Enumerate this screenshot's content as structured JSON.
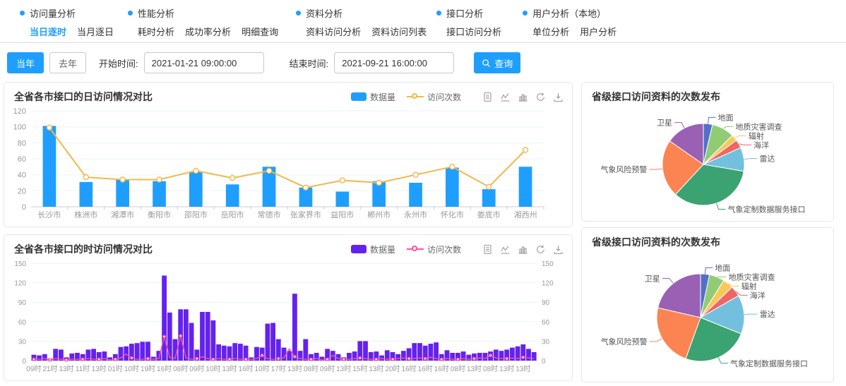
{
  "nav": {
    "groups": [
      {
        "title": "访问量分析",
        "items": [
          {
            "label": "当日逐时",
            "active": true
          },
          {
            "label": "当月逐日",
            "active": false
          }
        ]
      },
      {
        "title": "性能分析",
        "items": [
          {
            "label": "耗时分析",
            "active": false
          },
          {
            "label": "成功率分析",
            "active": false
          },
          {
            "label": "明细查询",
            "active": false
          }
        ]
      },
      {
        "title": "资料分析",
        "items": [
          {
            "label": "资料访问分析",
            "active": false
          },
          {
            "label": "资料访问列表",
            "active": false
          }
        ]
      },
      {
        "title": "接口分析",
        "items": [
          {
            "label": "接口访问分析",
            "active": false
          }
        ]
      },
      {
        "title": "用户分析（本地）",
        "items": [
          {
            "label": "单位分析",
            "active": false
          },
          {
            "label": "用户分析",
            "active": false
          }
        ]
      }
    ]
  },
  "filters": {
    "this_year_label": "当年",
    "last_year_label": "去年",
    "start_label": "开始时间:",
    "start_value": "2021-01-21 09:00:00",
    "end_label": "结束时间:",
    "end_value": "2021-09-21 16:00:00",
    "search_label": "查询"
  },
  "colors": {
    "accent": "#1e9fff"
  },
  "chart_data": [
    {
      "id": "daily",
      "type": "bar",
      "title": "全省各市接口的日访问情况对比",
      "categories": [
        "长沙市",
        "株洲市",
        "湘潭市",
        "衡阳市",
        "邵阳市",
        "岳阳市",
        "常德市",
        "张家界市",
        "益阳市",
        "郴州市",
        "永州市",
        "怀化市",
        "娄底市",
        "湘西州"
      ],
      "series": [
        {
          "name": "数据量",
          "type": "bar",
          "color": "#1e9fff",
          "values": [
            101,
            31,
            34,
            32,
            44,
            28,
            50,
            24,
            19,
            32,
            30,
            49,
            22,
            50
          ]
        },
        {
          "name": "访问次数",
          "type": "line",
          "color": "#f2b84b",
          "values": [
            99,
            37,
            34,
            34,
            45,
            36,
            45,
            24,
            33,
            30,
            40,
            50,
            25,
            71
          ]
        }
      ],
      "ylim": [
        0,
        120
      ],
      "ytick_step": 20,
      "grid": true,
      "legend_position": "top"
    },
    {
      "id": "hourly",
      "type": "bar",
      "title": "全省各市接口的时访问情况对比",
      "x_labels": [
        "09时",
        "21时",
        "13时",
        "11时",
        "13时",
        "01时",
        "10时",
        "19时",
        "16时",
        "08时",
        "09时",
        "10时",
        "13时",
        "16时",
        "10时",
        "17时",
        "13时",
        "08时",
        "09时",
        "13时",
        "15时",
        "13时",
        "20时",
        "16时",
        "16时",
        "16时",
        "08时",
        "13时",
        "08时",
        "13时",
        "13时"
      ],
      "x_label_interval": 3,
      "series": [
        {
          "name": "数据量",
          "type": "bar",
          "color": "#6421f0",
          "values": [
            9,
            8,
            10,
            3,
            18,
            17,
            5,
            11,
            12,
            10,
            17,
            18,
            13,
            14,
            5,
            10,
            21,
            22,
            26,
            27,
            29,
            29,
            6,
            15,
            131,
            74,
            33,
            79,
            79,
            58,
            17,
            75,
            75,
            62,
            25,
            23,
            22,
            27,
            26,
            23,
            5,
            21,
            20,
            57,
            58,
            33,
            20,
            15,
            103,
            15,
            33,
            10,
            12,
            6,
            18,
            15,
            10,
            5,
            12,
            14,
            30,
            30,
            13,
            14,
            8,
            16,
            13,
            10,
            15,
            19,
            27,
            27,
            23,
            26,
            28,
            10,
            16,
            12,
            12,
            14,
            9,
            11,
            12,
            12,
            14,
            17,
            15,
            17,
            20,
            22,
            25,
            18,
            13
          ]
        },
        {
          "name": "访问次数",
          "type": "line",
          "color": "#ff4f9e",
          "values": [
            2,
            2,
            3,
            1,
            3,
            2,
            1,
            2,
            2,
            2,
            3,
            2,
            2,
            3,
            1,
            2,
            4,
            10,
            4,
            2,
            2,
            3,
            2,
            3,
            37,
            5,
            3,
            38,
            4,
            2,
            3,
            6,
            3,
            2,
            3,
            2,
            2,
            3,
            2,
            2,
            2,
            3,
            8,
            3,
            2,
            3,
            4,
            18,
            6,
            3,
            2,
            2,
            3,
            1,
            2,
            8,
            3,
            2,
            2,
            3,
            4,
            3,
            2,
            2,
            3,
            2,
            2,
            3,
            4,
            3,
            3,
            4,
            3,
            5,
            3,
            2,
            3,
            2,
            2,
            3,
            2,
            3,
            4,
            3,
            8,
            4,
            3,
            3,
            4,
            3,
            5,
            4,
            3
          ]
        }
      ],
      "ylim": [
        0,
        150
      ],
      "ytick_step": 30,
      "grid": true,
      "dual_y_axis": true,
      "legend_position": "top"
    },
    {
      "id": "pie-top",
      "type": "pie",
      "title": "省级接口访问资料的次数发布",
      "slices": [
        {
          "label": "地面",
          "value": 3.6,
          "color": "#5470c6"
        },
        {
          "label": "地质灾害调查",
          "value": 8.9,
          "color": "#91cc75"
        },
        {
          "label": "辐射",
          "value": 2.5,
          "color": "#fac858"
        },
        {
          "label": "海洋",
          "value": 3.3,
          "color": "#ee6666"
        },
        {
          "label": "雷达",
          "value": 9.4,
          "color": "#73c0de"
        },
        {
          "label": "气象定制数据服务接口",
          "value": 34.2,
          "color": "#3ba272"
        },
        {
          "label": "气象风险预警",
          "value": 22.8,
          "color": "#fc8452"
        },
        {
          "label": "卫星",
          "value": 15.3,
          "color": "#9a60b4"
        }
      ]
    },
    {
      "id": "pie-bottom",
      "type": "pie",
      "title": "省级接口访问资料的次数发布",
      "slices": [
        {
          "label": "地面",
          "value": 3.3,
          "color": "#5470c6"
        },
        {
          "label": "地质灾害调查",
          "value": 5.6,
          "color": "#91cc75"
        },
        {
          "label": "辐射",
          "value": 3.9,
          "color": "#fac858"
        },
        {
          "label": "海洋",
          "value": 3.9,
          "color": "#ee6666"
        },
        {
          "label": "雷达",
          "value": 14.4,
          "color": "#73c0de"
        },
        {
          "label": "气象定制数据服务接口",
          "value": 24.4,
          "color": "#3ba272"
        },
        {
          "label": "气象风险预警",
          "value": 23.1,
          "color": "#fc8452"
        },
        {
          "label": "卫星",
          "value": 21.4,
          "color": "#9a60b4"
        }
      ]
    }
  ]
}
